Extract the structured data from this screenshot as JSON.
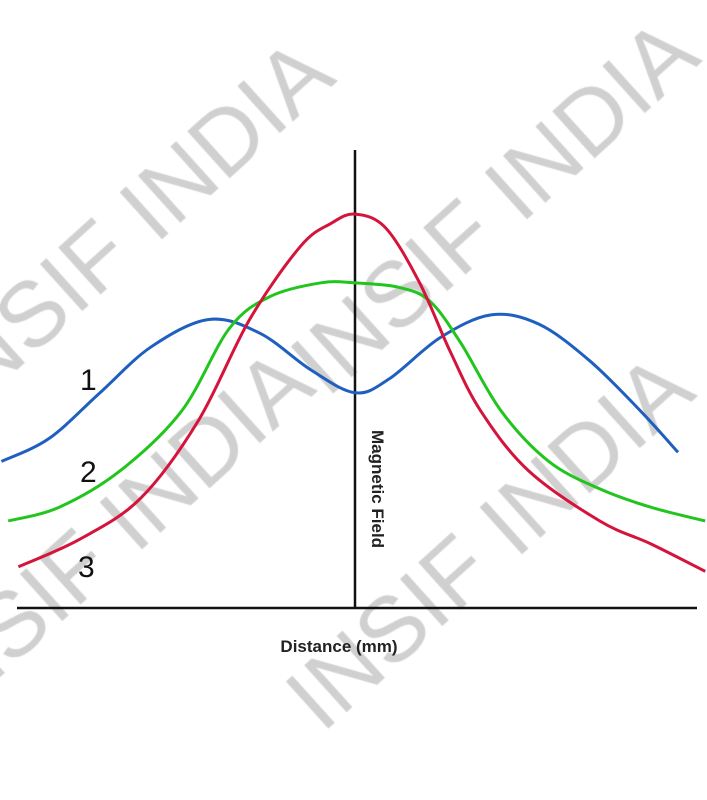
{
  "chart_data": {
    "type": "line",
    "title": "",
    "xlabel": "Distance (mm)",
    "ylabel": "Magnetic Field",
    "xlim": [
      -1.04,
      1.04
    ],
    "ylim": [
      0,
      1
    ],
    "grid": false,
    "axis_ticks": false,
    "series": [
      {
        "name": "1",
        "color": "#1f5fbf",
        "x": [
          -1.04,
          -0.9,
          -0.75,
          -0.6,
          -0.43,
          -0.28,
          -0.13,
          0,
          0.1,
          0.25,
          0.4,
          0.54,
          0.69,
          0.84,
          0.95
        ],
        "y": [
          0.32,
          0.37,
          0.47,
          0.57,
          0.63,
          0.6,
          0.52,
          0.47,
          0.5,
          0.59,
          0.64,
          0.62,
          0.54,
          0.43,
          0.34
        ]
      },
      {
        "name": "2",
        "color": "#22c41e",
        "x": [
          -1.02,
          -0.87,
          -0.69,
          -0.51,
          -0.37,
          -0.25,
          -0.1,
          0,
          0.13,
          0.22,
          0.31,
          0.43,
          0.57,
          0.72,
          0.87,
          1.03
        ],
        "y": [
          0.19,
          0.22,
          0.3,
          0.43,
          0.61,
          0.68,
          0.71,
          0.71,
          0.7,
          0.67,
          0.58,
          0.43,
          0.32,
          0.26,
          0.22,
          0.19
        ]
      },
      {
        "name": "3",
        "color": "#d4143a",
        "x": [
          -0.99,
          -0.81,
          -0.63,
          -0.46,
          -0.31,
          -0.16,
          -0.07,
          0,
          0.09,
          0.19,
          0.28,
          0.37,
          0.51,
          0.72,
          0.87,
          1.03
        ],
        "y": [
          0.09,
          0.15,
          0.24,
          0.41,
          0.63,
          0.79,
          0.84,
          0.86,
          0.83,
          0.71,
          0.56,
          0.43,
          0.3,
          0.19,
          0.14,
          0.08
        ]
      }
    ]
  },
  "watermark": "INSIF INDIA"
}
